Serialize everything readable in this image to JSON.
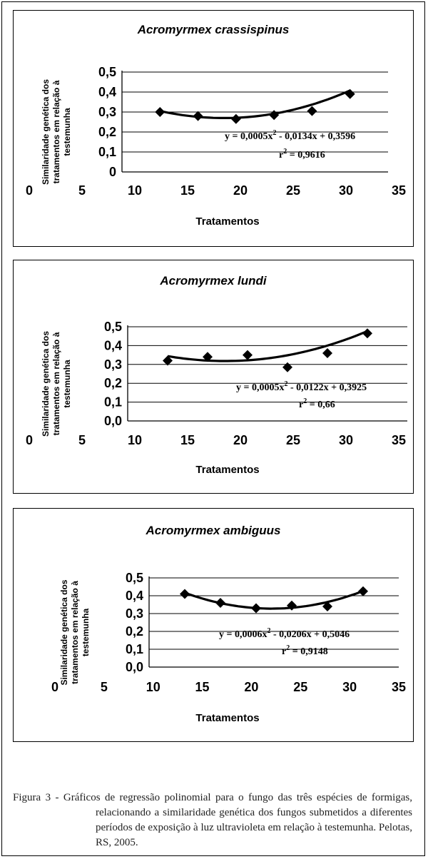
{
  "chart_data": [
    {
      "type": "scatter",
      "title": "Acromyrmex crassispinus",
      "xlabel": "Tratamentos",
      "ylabel_lines": [
        "Similaridade genética dos",
        "tratamentos em relação à",
        "testemunha"
      ],
      "xlim": [
        0,
        35
      ],
      "ylim": [
        0,
        0.5
      ],
      "xticks": [
        "0",
        "5",
        "10",
        "15",
        "20",
        "25",
        "30",
        "35"
      ],
      "yticks": [
        "0",
        "0,1",
        "0,2",
        "0,3",
        "0,4",
        "0,5"
      ],
      "grid": "horizontal",
      "x": [
        5,
        10,
        15,
        20,
        25,
        30
      ],
      "y": [
        0.3,
        0.28,
        0.265,
        0.285,
        0.305,
        0.39
      ],
      "trendline": {
        "type": "polynomial",
        "a": 0.0005,
        "b": -0.0134,
        "c": 0.3596
      },
      "equation": "y = 0,0005x",
      "equation_sup": "2",
      "equation_rest": " - 0,0134x + 0,3596",
      "r2_label": "r",
      "r2_sup": "2",
      "r2_rest": " = 0,9616"
    },
    {
      "type": "scatter",
      "title": "Acromyrmex lundi",
      "xlabel": "Tratamentos",
      "ylabel_lines": [
        "Similaridade genética dos",
        "tratamentos em relação à",
        "testemunha"
      ],
      "xlim": [
        0,
        35
      ],
      "ylim": [
        0,
        0.5
      ],
      "xticks": [
        "0",
        "5",
        "10",
        "15",
        "20",
        "25",
        "30",
        "35"
      ],
      "yticks": [
        "0,0",
        "0,1",
        "0,2",
        "0,3",
        "0,4",
        "0,5"
      ],
      "grid": "horizontal",
      "x": [
        5,
        10,
        15,
        20,
        25,
        30
      ],
      "y": [
        0.32,
        0.34,
        0.35,
        0.285,
        0.36,
        0.465
      ],
      "trendline": {
        "type": "polynomial",
        "a": 0.0005,
        "b": -0.0122,
        "c": 0.3925
      },
      "equation": "y = 0,0005x",
      "equation_sup": "2",
      "equation_rest": " - 0,0122x + 0,3925",
      "r2_label": "r",
      "r2_sup": "2",
      "r2_rest": " = 0,66"
    },
    {
      "type": "scatter",
      "title": "Acromyrmex ambiguus",
      "xlabel": "Tratamentos",
      "ylabel_lines": [
        "Similaridade genética dos",
        "tratamentos em relação à",
        "testemunha"
      ],
      "xlim": [
        0,
        35
      ],
      "ylim": [
        0,
        0.5
      ],
      "xticks": [
        "0",
        "5",
        "10",
        "15",
        "20",
        "25",
        "30",
        "35"
      ],
      "yticks": [
        "0,0",
        "0,1",
        "0,2",
        "0,3",
        "0,4",
        "0,5"
      ],
      "grid": "horizontal",
      "x": [
        5,
        10,
        15,
        20,
        25,
        30
      ],
      "y": [
        0.41,
        0.36,
        0.33,
        0.345,
        0.34,
        0.425
      ],
      "trendline": {
        "type": "polynomial",
        "a": 0.0006,
        "b": -0.0206,
        "c": 0.5046
      },
      "equation": "y = 0,0006x",
      "equation_sup": "2",
      "equation_rest": " - 0,0206x + 0,5046",
      "r2_label": "r",
      "r2_sup": "2",
      "r2_rest": " = 0,9148"
    }
  ],
  "caption": {
    "label": "Figura 3 - ",
    "text": "Gráficos de regressão polinomial para o fungo das três espécies de formigas, relacionando a similaridade genética dos fungos submetidos a diferentes períodos de exposição à luz ultravioleta em relação à testemunha. Pelotas, RS, 2005."
  }
}
